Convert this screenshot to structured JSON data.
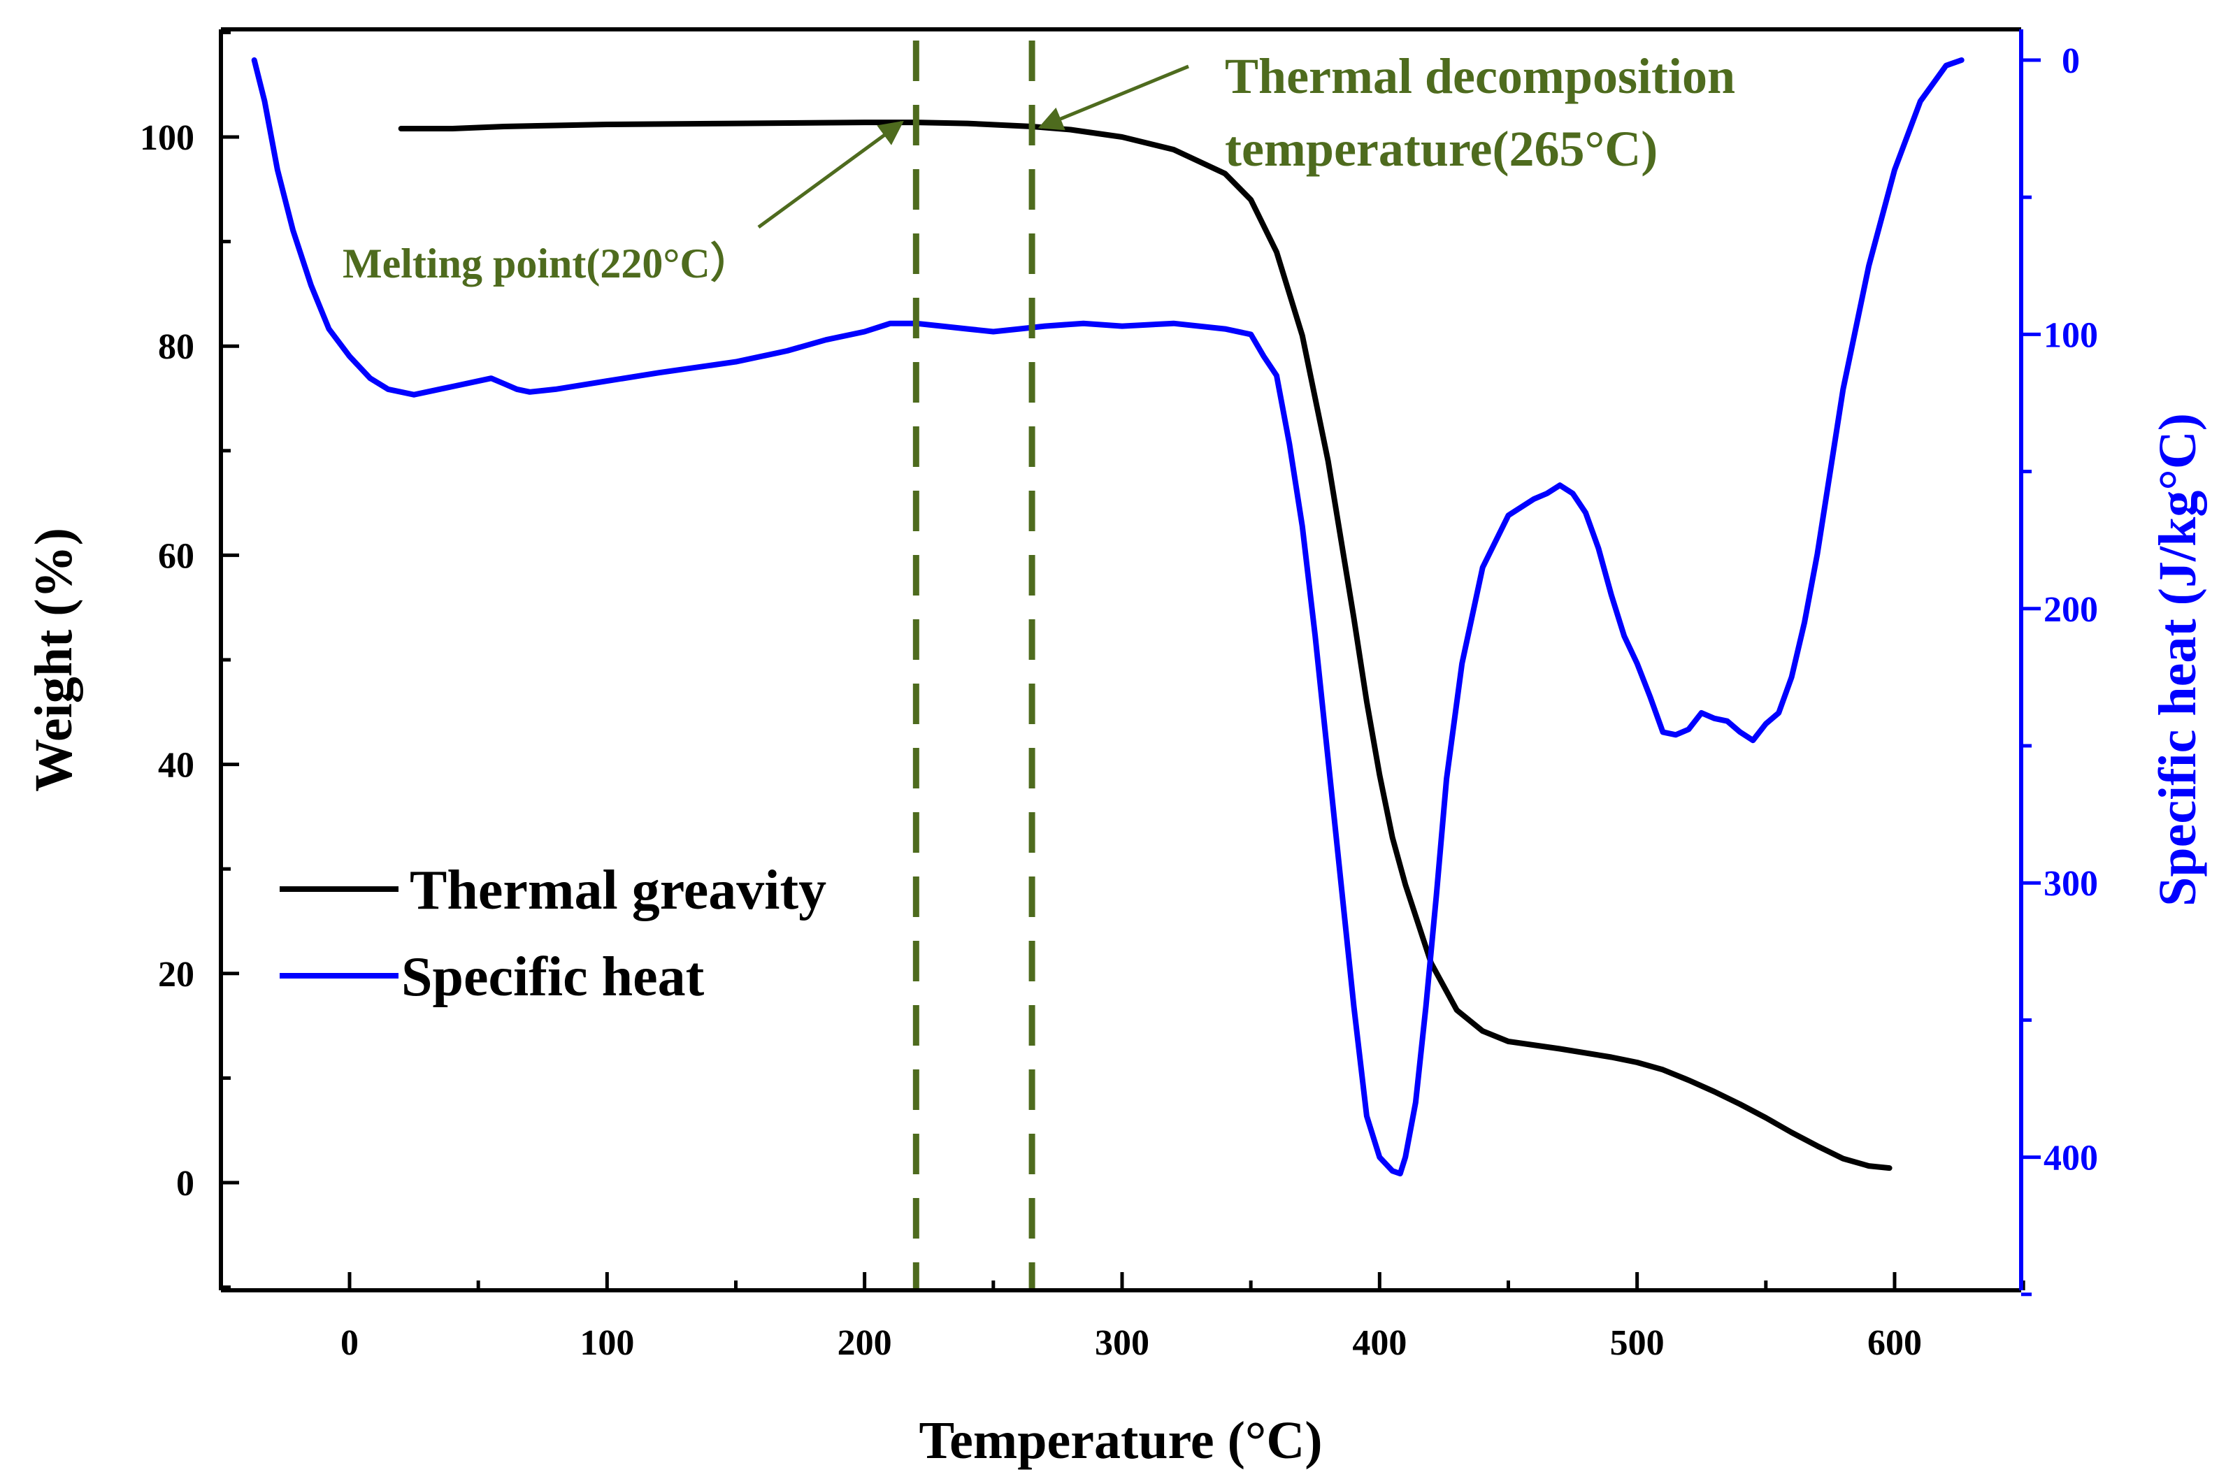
{
  "chart_data": {
    "type": "line",
    "xlabel": "Temperature (°C)",
    "ylabel": "Weight (%)",
    "y2label": "Specific heat (J/kg°C)",
    "xlim": [
      -50,
      650
    ],
    "ylim": [
      -10,
      110
    ],
    "y2lim": [
      450,
      -10
    ],
    "xticks": [
      0,
      100,
      200,
      300,
      400,
      500,
      600
    ],
    "yticks": [
      0,
      20,
      40,
      60,
      80,
      100
    ],
    "y2ticks": [
      0,
      100,
      200,
      300,
      400
    ],
    "grid": false,
    "legend_position": "center-left",
    "colors": {
      "tg": "#000000",
      "cp": "#0000ff",
      "annotation": "#4e6b1e",
      "right_axis": "#0000ff"
    },
    "series": [
      {
        "name": "Thermal greavity",
        "axis": "left",
        "color": "#000000",
        "x": [
          20,
          40,
          60,
          80,
          100,
          150,
          200,
          220,
          240,
          265,
          280,
          300,
          320,
          340,
          350,
          360,
          370,
          380,
          390,
          395,
          400,
          405,
          410,
          420,
          430,
          440,
          450,
          470,
          490,
          500,
          510,
          520,
          530,
          540,
          550,
          560,
          570,
          580,
          590,
          598
        ],
        "y": [
          100.8,
          100.8,
          101.0,
          101.1,
          101.2,
          101.3,
          101.4,
          101.4,
          101.3,
          101.0,
          100.7,
          100.0,
          98.8,
          96.5,
          94.0,
          89.0,
          81.0,
          69.0,
          54.0,
          46.0,
          39.0,
          33.0,
          28.5,
          21.0,
          16.5,
          14.5,
          13.5,
          12.8,
          12.0,
          11.5,
          10.8,
          9.8,
          8.7,
          7.5,
          6.2,
          4.8,
          3.5,
          2.3,
          1.6,
          1.4
        ]
      },
      {
        "name": "Specific heat",
        "axis": "right",
        "color": "#0000ff",
        "x": [
          -37,
          -33,
          -28,
          -22,
          -15,
          -8,
          0,
          8,
          15,
          25,
          40,
          55,
          60,
          65,
          70,
          80,
          100,
          120,
          150,
          170,
          185,
          200,
          210,
          220,
          230,
          240,
          250,
          260,
          270,
          285,
          300,
          320,
          340,
          350,
          355,
          360,
          365,
          370,
          375,
          380,
          385,
          390,
          395,
          400,
          405,
          408,
          410,
          414,
          418,
          422,
          426,
          432,
          440,
          450,
          460,
          465,
          470,
          475,
          480,
          485,
          490,
          495,
          500,
          505,
          510,
          515,
          520,
          525,
          530,
          535,
          540,
          545,
          550,
          555,
          560,
          565,
          570,
          580,
          590,
          600,
          610,
          620,
          626
        ],
        "y": [
          0,
          15,
          40,
          62,
          82,
          98,
          108,
          116,
          120,
          122,
          119,
          116,
          118,
          120,
          121,
          120,
          117,
          114,
          110,
          106,
          102,
          99,
          96,
          96,
          97,
          98,
          99,
          98,
          97,
          96,
          97,
          96,
          98,
          100,
          108,
          115,
          140,
          170,
          210,
          255,
          300,
          345,
          385,
          400,
          405,
          406,
          400,
          380,
          345,
          305,
          262,
          220,
          185,
          166,
          160,
          158,
          155,
          158,
          165,
          178,
          195,
          210,
          220,
          232,
          245,
          246,
          244,
          238,
          240,
          241,
          245,
          248,
          242,
          238,
          225,
          205,
          180,
          120,
          75,
          40,
          15,
          2,
          0
        ]
      }
    ],
    "annotations": [
      {
        "label": "Melting point(220°C）",
        "x": 220
      },
      {
        "label": "Thermal decomposition",
        "label_line2": "temperature(265°C)",
        "x": 265
      }
    ]
  }
}
